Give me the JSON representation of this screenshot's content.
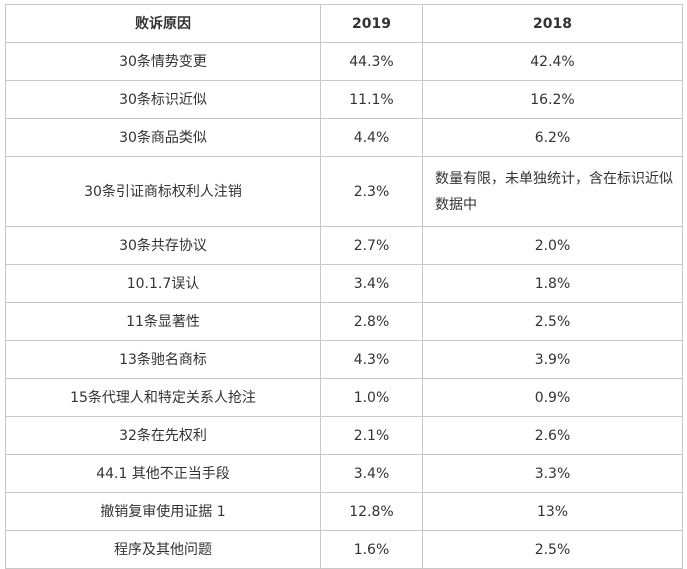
{
  "table": {
    "headers": [
      "败诉原因",
      "2019",
      "2018"
    ],
    "rows": [
      {
        "reason": "30条情势变更",
        "y2019": "44.3%",
        "y2018": "42.4%"
      },
      {
        "reason": "30条标识近似",
        "y2019": "11.1%",
        "y2018": "16.2%"
      },
      {
        "reason": "30条商品类似",
        "y2019": "4.4%",
        "y2018": "6.2%"
      },
      {
        "reason": "30条引证商标权利人注销",
        "y2019": "2.3%",
        "y2018": "数量有限，未单独统计，含在标识近似数据中"
      },
      {
        "reason": "30条共存协议",
        "y2019": "2.7%",
        "y2018": "2.0%"
      },
      {
        "reason": "10.1.7误认",
        "y2019": "3.4%",
        "y2018": "1.8%"
      },
      {
        "reason": "11条显著性",
        "y2019": "2.8%",
        "y2018": "2.5%"
      },
      {
        "reason": "13条驰名商标",
        "y2019": "4.3%",
        "y2018": "3.9%"
      },
      {
        "reason": "15条代理人和特定关系人抢注",
        "y2019": "1.0%",
        "y2018": "0.9%"
      },
      {
        "reason": "32条在先权利",
        "y2019": "2.1%",
        "y2018": "2.6%"
      },
      {
        "reason": "44.1 其他不正当手段",
        "y2019": "3.4%",
        "y2018": "3.3%"
      },
      {
        "reason": "撤销复审使用证据 1",
        "y2019": "12.8%",
        "y2018": "13%"
      },
      {
        "reason": "程序及其他问题",
        "y2019": "1.6%",
        "y2018": "2.5%"
      }
    ]
  }
}
